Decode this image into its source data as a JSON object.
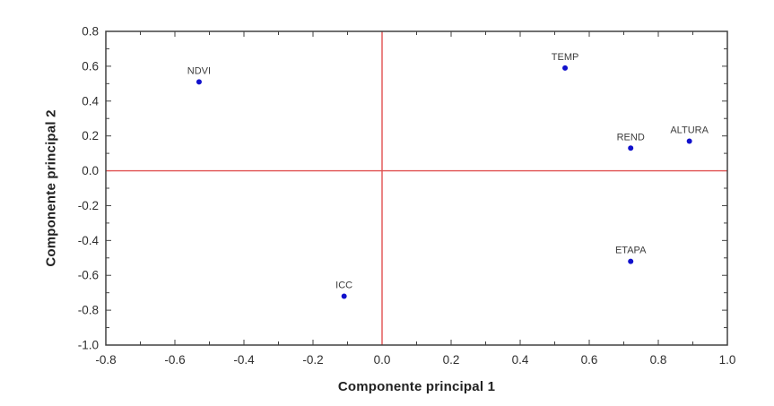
{
  "chart_data": {
    "type": "scatter",
    "title": "",
    "xlabel": "Componente principal 1",
    "ylabel": "Componente principal 2",
    "xlim": [
      -0.8,
      1.0
    ],
    "ylim": [
      -1.0,
      0.8
    ],
    "minor_tick_step": 0.1,
    "label_tick_step": 0.2,
    "grid": false,
    "x_tick_labels": [
      "-0.8",
      "-0.6",
      "-0.4",
      "-0.2",
      "0.0",
      "0.2",
      "0.4",
      "0.6",
      "0.8",
      "1.0"
    ],
    "y_tick_labels": [
      "0.8",
      "0.6",
      "0.4",
      "0.2",
      "0.0",
      "-0.2",
      "-0.4",
      "-0.6",
      "-0.8",
      "-1.0"
    ],
    "reference_lines": {
      "vertical_x": 0.0,
      "horizontal_y": 0.0
    },
    "points": [
      {
        "label": "NDVI",
        "x": -0.53,
        "y": 0.51
      },
      {
        "label": "TEMP",
        "x": 0.53,
        "y": 0.59
      },
      {
        "label": "REND",
        "x": 0.72,
        "y": 0.13
      },
      {
        "label": "ALTURA",
        "x": 0.89,
        "y": 0.17
      },
      {
        "label": "ETAPA",
        "x": 0.72,
        "y": -0.52
      },
      {
        "label": "ICC",
        "x": -0.11,
        "y": -0.72
      }
    ],
    "colors": {
      "point": "#1111cc",
      "reference_line": "#e05050",
      "axis_border": "#404040",
      "tick": "#404040",
      "tick_label": "#2f2f2f",
      "point_label": "#3c3c3c",
      "background": "#ffffff"
    }
  }
}
